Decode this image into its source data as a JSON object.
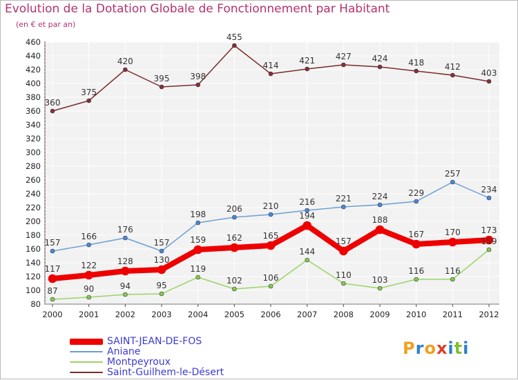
{
  "title": "Evolution de la Dotation Globale de Fonctionnement par Habitant",
  "subtitle": "(en € et par an)",
  "logo": {
    "letters": [
      "P",
      "r",
      "o",
      "x",
      "i",
      "t",
      "i"
    ],
    "colors": [
      "#f0a020",
      "#2a7fd0",
      "#f0a020",
      "#d8402a",
      "#2a7fd0",
      "#80c030",
      "#2a7fd0"
    ]
  },
  "chart_data": {
    "type": "line",
    "title": "Evolution de la Dotation Globale de Fonctionnement par Habitant",
    "subtitle": "(en € et par an)",
    "x": [
      "2000",
      "2001",
      "2002",
      "2003",
      "2004",
      "2005",
      "2006",
      "2007",
      "2008",
      "2009",
      "2010",
      "2011",
      "2012"
    ],
    "ylim": [
      80,
      460
    ],
    "yticks": [
      80,
      100,
      120,
      140,
      160,
      180,
      200,
      220,
      240,
      260,
      280,
      300,
      320,
      340,
      360,
      380,
      400,
      420,
      440,
      460
    ],
    "grid": true,
    "legend_position": "bottom-left",
    "series": [
      {
        "name": "SAINT-JEAN-DE-FOS",
        "color": "#ee0000",
        "width": 8,
        "marker": "#ee0000",
        "labels_visible": true,
        "values": [
          117,
          122,
          128,
          130,
          159,
          162,
          165,
          194,
          157,
          188,
          167,
          170,
          173
        ]
      },
      {
        "name": "Aniane",
        "color": "#6b9fd1",
        "width": 1.5,
        "marker": "#4a8ad4",
        "labels_visible": true,
        "values": [
          157,
          166,
          176,
          157,
          198,
          206,
          210,
          216,
          221,
          224,
          229,
          257,
          234
        ]
      },
      {
        "name": "Montpeyroux",
        "color": "#9ad466",
        "width": 1.5,
        "marker": "#88cc44",
        "labels_visible": true,
        "values": [
          87,
          90,
          94,
          95,
          119,
          102,
          106,
          144,
          110,
          103,
          116,
          116,
          159
        ]
      },
      {
        "name": "Saint-Guilhem-le-Désert",
        "color": "#7a2a2a",
        "width": 1.5,
        "marker": "#8a2f2f",
        "labels_visible": true,
        "values": [
          360,
          375,
          420,
          395,
          398,
          455,
          414,
          421,
          427,
          424,
          418,
          412,
          403
        ]
      }
    ]
  }
}
